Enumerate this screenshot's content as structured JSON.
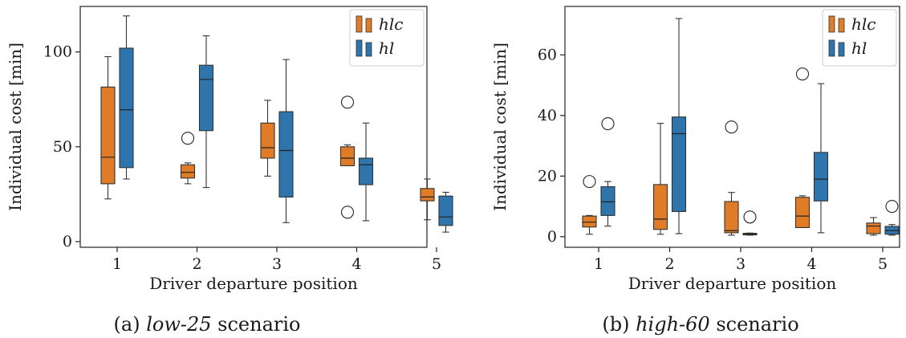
{
  "chart_data": [
    {
      "type": "box",
      "xlabel": "Driver departure position",
      "ylabel": "Individual cost [min]",
      "ylim": [
        -3,
        124
      ],
      "yticks": [
        0,
        50,
        100
      ],
      "categories": [
        "1",
        "2",
        "3",
        "4",
        "5"
      ],
      "caption_prefix": "(a) ",
      "caption_emph": "low-25",
      "caption_suffix": " scenario",
      "legend_position": "top-right",
      "series": [
        {
          "name": "hlc",
          "color": "#e07b28",
          "boxes": [
            {
              "whislo": 22.5,
              "q1": 30.5,
              "med": 44.5,
              "q3": 81.5,
              "whishi": 97.5,
              "fliers": []
            },
            {
              "whislo": 30.5,
              "q1": 33.5,
              "med": 36.5,
              "q3": 40.5,
              "whishi": 41.5,
              "fliers": [
                54.5
              ]
            },
            {
              "whislo": 34.5,
              "q1": 44.0,
              "med": 49.5,
              "q3": 62.5,
              "whishi": 74.5,
              "fliers": []
            },
            {
              "whislo": 40.0,
              "q1": 40.0,
              "med": 44.0,
              "q3": 50.0,
              "whishi": 51.0,
              "fliers": [
                73.5,
                15.5
              ]
            },
            {
              "whislo": 11.5,
              "q1": 21.5,
              "med": 23.5,
              "q3": 28.0,
              "whishi": 33.0,
              "fliers": []
            }
          ]
        },
        {
          "name": "hl",
          "color": "#2e75ad",
          "boxes": [
            {
              "whislo": 33.0,
              "q1": 39.0,
              "med": 69.5,
              "q3": 102.0,
              "whishi": 119.0,
              "fliers": []
            },
            {
              "whislo": 28.5,
              "q1": 58.5,
              "med": 85.5,
              "q3": 93.0,
              "whishi": 108.5,
              "fliers": []
            },
            {
              "whislo": 10.0,
              "q1": 23.5,
              "med": 48.0,
              "q3": 68.5,
              "whishi": 96.0,
              "fliers": []
            },
            {
              "whislo": 11.0,
              "q1": 30.0,
              "med": 40.5,
              "q3": 44.0,
              "whishi": 62.5,
              "fliers": []
            },
            {
              "whislo": 5.0,
              "q1": 8.5,
              "med": 13.0,
              "q3": 24.0,
              "whishi": 26.0,
              "fliers": []
            }
          ]
        }
      ]
    },
    {
      "type": "box",
      "xlabel": "Driver departure position",
      "ylabel": "Individual cost [min]",
      "ylim": [
        -3.5,
        76
      ],
      "yticks": [
        0,
        20,
        40,
        60
      ],
      "categories": [
        "1",
        "2",
        "3",
        "4",
        "5"
      ],
      "caption_prefix": "(b) ",
      "caption_emph": "high-60",
      "caption_suffix": " scenario",
      "legend_position": "top-right",
      "series": [
        {
          "name": "hlc",
          "color": "#e07b28",
          "boxes": [
            {
              "whislo": 0.8,
              "q1": 3.2,
              "med": 4.8,
              "q3": 6.8,
              "whishi": 7.0,
              "fliers": [
                18.2
              ]
            },
            {
              "whislo": 0.8,
              "q1": 2.4,
              "med": 5.8,
              "q3": 17.2,
              "whishi": 37.4,
              "fliers": []
            },
            {
              "whislo": 0.5,
              "q1": 1.3,
              "med": 2.0,
              "q3": 11.6,
              "whishi": 14.6,
              "fliers": [
                36.2
              ]
            },
            {
              "whislo": 3.0,
              "q1": 3.0,
              "med": 6.8,
              "q3": 13.0,
              "whishi": 13.5,
              "fliers": [
                53.7
              ]
            },
            {
              "whislo": 0.5,
              "q1": 1.0,
              "med": 3.5,
              "q3": 4.5,
              "whishi": 6.3,
              "fliers": []
            }
          ]
        },
        {
          "name": "hl",
          "color": "#2e75ad",
          "boxes": [
            {
              "whislo": 3.5,
              "q1": 7.0,
              "med": 11.5,
              "q3": 16.5,
              "whishi": 18.2,
              "fliers": [
                37.3
              ]
            },
            {
              "whislo": 1.0,
              "q1": 8.3,
              "med": 34.0,
              "q3": 39.5,
              "whishi": 72.0,
              "fliers": []
            },
            {
              "whislo": 0.5,
              "q1": 0.6,
              "med": 0.9,
              "q3": 1.1,
              "whishi": 1.2,
              "fliers": [
                6.5
              ]
            },
            {
              "whislo": 1.3,
              "q1": 11.8,
              "med": 19.0,
              "q3": 27.8,
              "whishi": 50.5,
              "fliers": []
            },
            {
              "whislo": 0.5,
              "q1": 0.8,
              "med": 2.0,
              "q3": 3.4,
              "whishi": 4.0,
              "fliers": [
                10.0
              ]
            }
          ]
        }
      ]
    }
  ]
}
